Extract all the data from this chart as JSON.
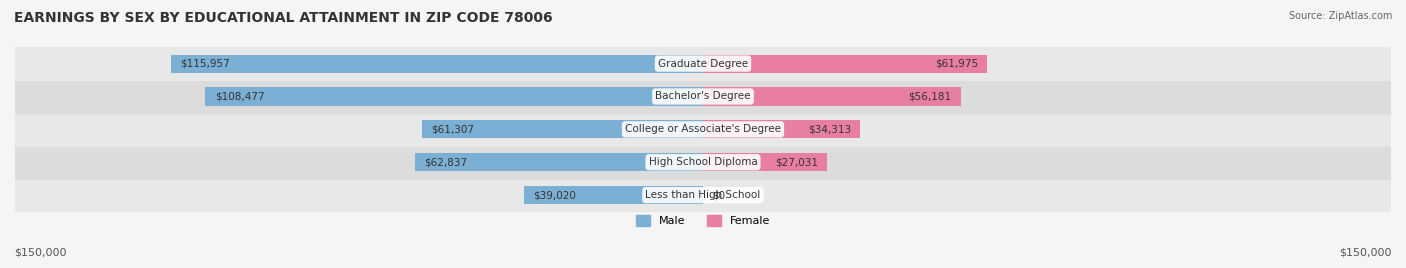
{
  "title": "EARNINGS BY SEX BY EDUCATIONAL ATTAINMENT IN ZIP CODE 78006",
  "source": "Source: ZipAtlas.com",
  "categories": [
    "Less than High School",
    "High School Diploma",
    "College or Associate's Degree",
    "Bachelor's Degree",
    "Graduate Degree"
  ],
  "male_values": [
    39020,
    62837,
    61307,
    108477,
    115957
  ],
  "female_values": [
    0,
    27031,
    34313,
    56181,
    61975
  ],
  "male_color": "#7bafd4",
  "female_color": "#e87fa0",
  "max_val": 150000,
  "bg_color": "#f0f0f0",
  "row_bg_color": "#e8e8e8",
  "title_fontsize": 10,
  "label_fontsize": 8.5,
  "bar_height": 0.55,
  "x_label_left": "$150,000",
  "x_label_right": "$150,000"
}
